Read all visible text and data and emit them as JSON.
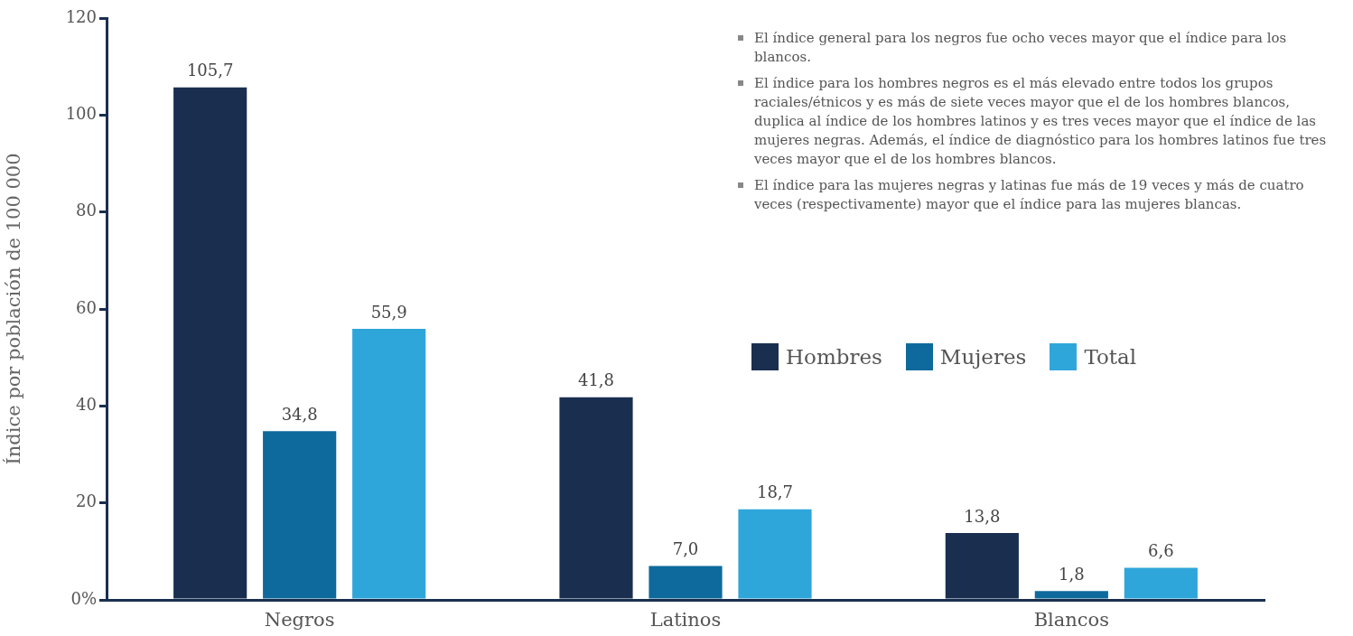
{
  "chart_data": {
    "type": "bar",
    "ylabel": "Índice por población de 100 000",
    "categories": [
      "Negros",
      "Latinos",
      "Blancos"
    ],
    "series": [
      {
        "name": "Hombres",
        "color": "#1a2f50",
        "values": [
          105.7,
          41.8,
          13.8
        ],
        "value_labels": [
          "105,7",
          "41,8",
          "13,8"
        ]
      },
      {
        "name": "Mujeres",
        "color": "#0e6a9c",
        "values": [
          34.8,
          7.0,
          1.8
        ],
        "value_labels": [
          "34,8",
          "7,0",
          "1,8"
        ]
      },
      {
        "name": "Total",
        "color": "#2fa6da",
        "values": [
          55.9,
          18.7,
          6.6
        ],
        "value_labels": [
          "55,9",
          "18,7",
          "6,6"
        ]
      }
    ],
    "ylim": [
      0,
      120
    ],
    "yticks": [
      {
        "value": 0,
        "label": "0%"
      },
      20,
      40,
      60,
      80,
      100,
      120
    ],
    "grid": false,
    "legend": "right",
    "annotations": [
      "El índice general para los negros fue ocho veces mayor que el índice para los blancos.",
      "El índice para los hombres negros es el más elevado entre todos los grupos raciales/étnicos y es más de siete veces mayor que el de los hombres blancos, duplica al índice de los hombres latinos y es tres veces mayor que el índice de las mujeres negras. Además, el índice de diagnóstico para los hombres latinos fue tres veces mayor que el de los hombres blancos.",
      "El índice para las mujeres negras y latinas fue más de 19 veces y más de cuatro veces (respectivamente) mayor que el índice para las mujeres blancas."
    ]
  }
}
